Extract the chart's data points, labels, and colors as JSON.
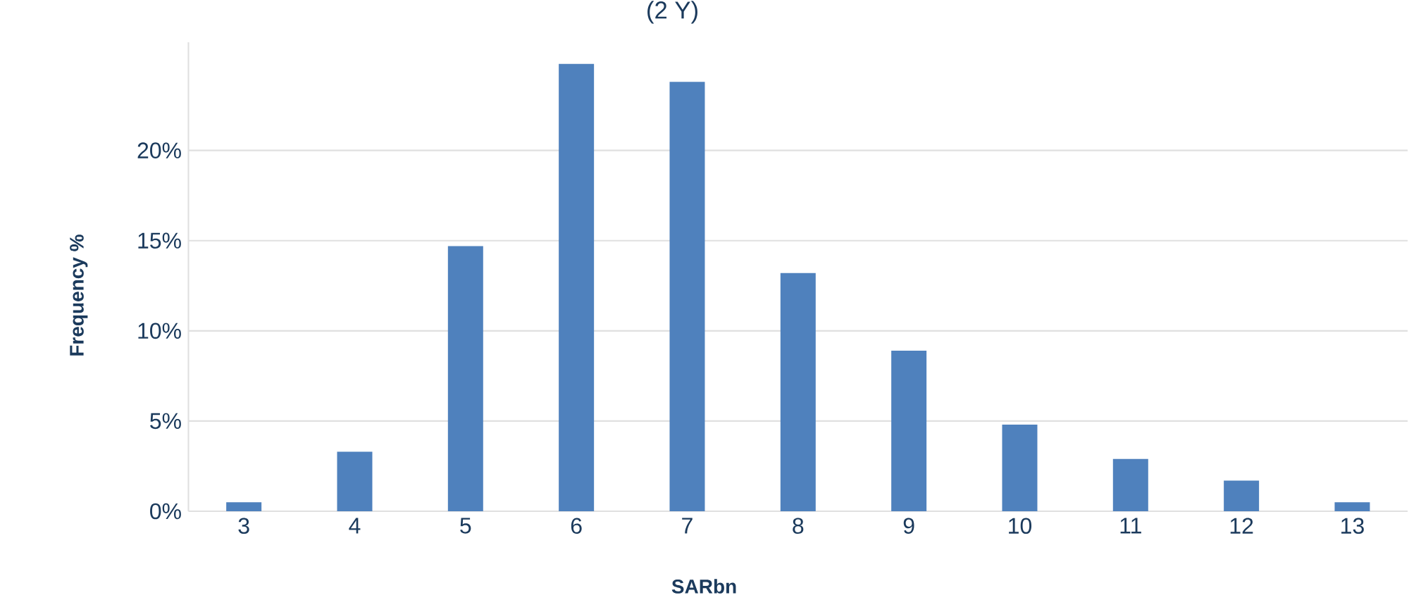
{
  "chart_data": {
    "type": "bar",
    "title": "(2 Y)",
    "xlabel": "SARbn",
    "ylabel": "Frequency %",
    "categories": [
      "3",
      "4",
      "5",
      "6",
      "7",
      "8",
      "9",
      "10",
      "11",
      "12",
      "13"
    ],
    "values": [
      0.5,
      3.3,
      14.7,
      24.8,
      23.8,
      13.2,
      8.9,
      4.8,
      2.9,
      1.7,
      0.5
    ],
    "color": "#4f81bd",
    "ylim": [
      0,
      26
    ],
    "yticks": [
      {
        "value": 0,
        "label": "0%"
      },
      {
        "value": 5,
        "label": "5%"
      },
      {
        "value": 10,
        "label": "10%"
      },
      {
        "value": 15,
        "label": "15%"
      },
      {
        "value": 20,
        "label": "20%"
      }
    ],
    "grid": "y"
  }
}
